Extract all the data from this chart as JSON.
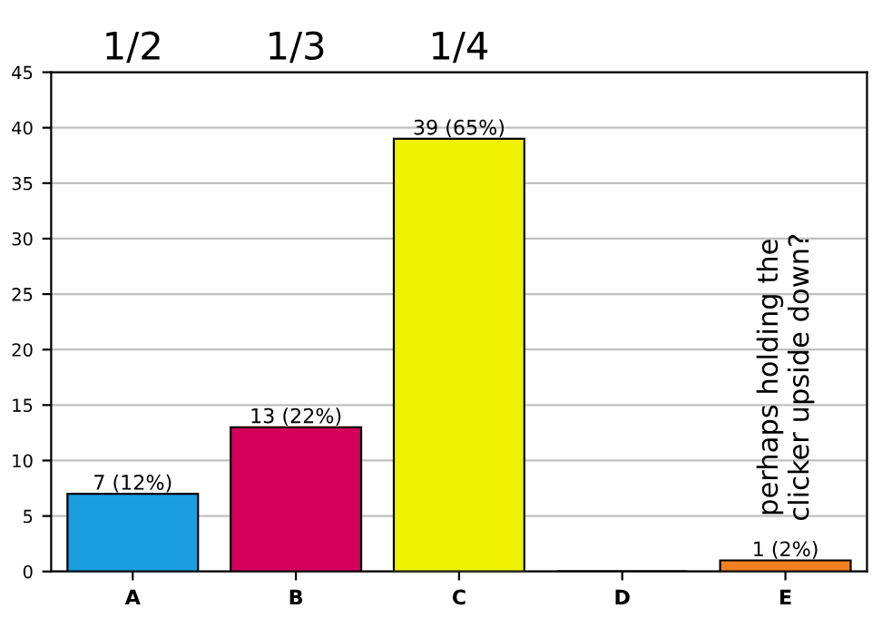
{
  "chart_data": {
    "type": "bar",
    "categories": [
      "A",
      "B",
      "C",
      "D",
      "E"
    ],
    "values": [
      7,
      13,
      39,
      0,
      1
    ],
    "colors": [
      "#1a9ee0",
      "#d4005c",
      "#eef200",
      "#808080",
      "#f08020"
    ],
    "value_labels": [
      "7 (12%)",
      "13 (22%)",
      "39 (65%)",
      null,
      "1 (2%)"
    ],
    "ylim": [
      0,
      45
    ],
    "yticks": [
      0,
      5,
      10,
      15,
      20,
      25,
      30,
      35,
      40,
      45
    ],
    "grid": "y",
    "annotations": [
      "1/2",
      "1/3",
      "1/4",
      "perhaps holding the\nclicker upside down?"
    ]
  }
}
